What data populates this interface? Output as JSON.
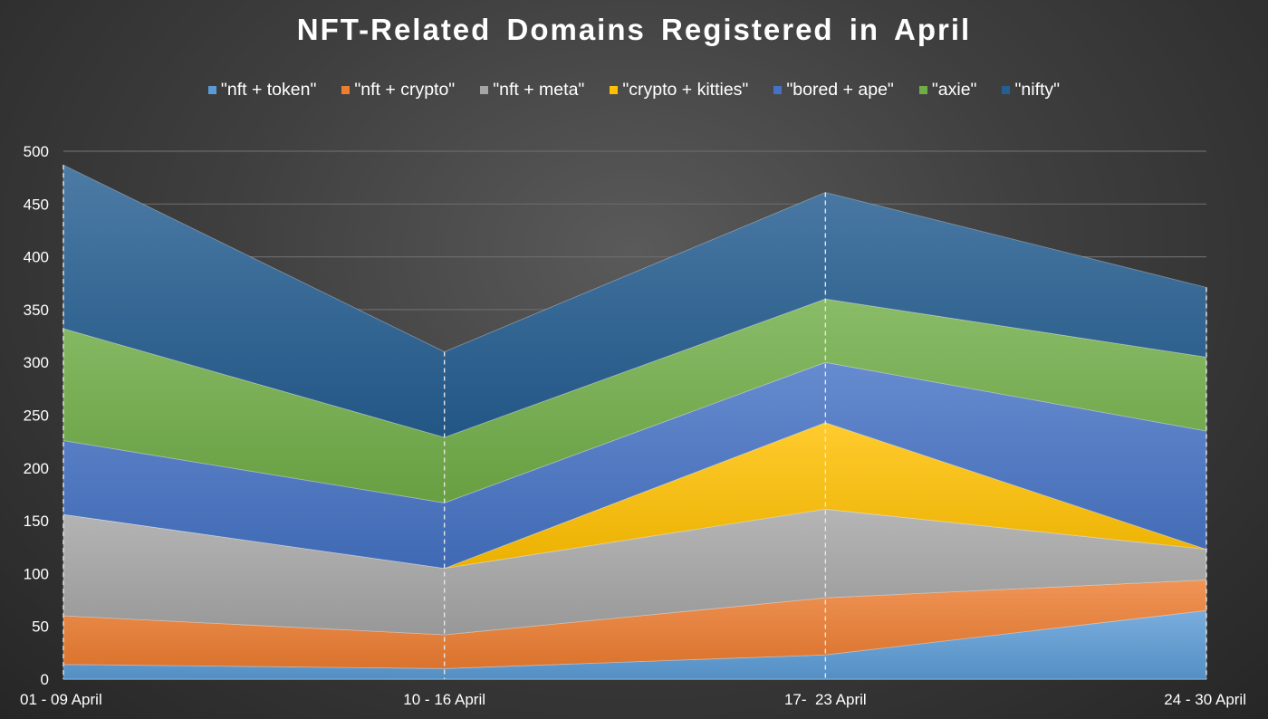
{
  "chart_data": {
    "type": "area",
    "stacked": true,
    "title": "NFT-Related Domains Registered in April",
    "categories": [
      "01 - 09 April",
      "10 - 16 April",
      "17-  23 April",
      "24 - 30 April"
    ],
    "ylim": [
      0,
      500
    ],
    "yticks": [
      0,
      50,
      100,
      150,
      200,
      250,
      300,
      350,
      400,
      450,
      500
    ],
    "grid": true,
    "legend_position": "top",
    "series": [
      {
        "name": "\"nft + token\"",
        "color": "#5b9bd5",
        "values": [
          14,
          10,
          23,
          65
        ]
      },
      {
        "name": "\"nft + crypto\"",
        "color": "#ed7d31",
        "values": [
          46,
          32,
          54,
          29
        ]
      },
      {
        "name": "\"nft + meta\"",
        "color": "#a5a5a5",
        "values": [
          96,
          63,
          84,
          29
        ]
      },
      {
        "name": "\"crypto + kitties\"",
        "color": "#ffc000",
        "values": [
          0,
          0,
          82,
          0
        ]
      },
      {
        "name": "\"bored + ape\"",
        "color": "#4472c4",
        "values": [
          70,
          62,
          57,
          112
        ]
      },
      {
        "name": "\"axie\"",
        "color": "#70ad47",
        "values": [
          106,
          62,
          60,
          70
        ]
      },
      {
        "name": "\"nifty\"",
        "color": "#255e91",
        "values": [
          155,
          81,
          101,
          66
        ]
      }
    ]
  }
}
